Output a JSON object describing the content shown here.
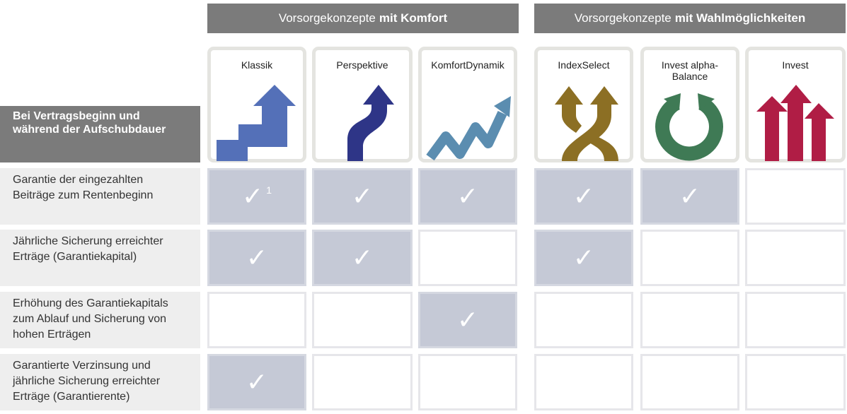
{
  "groups": [
    {
      "prefix": "Vorsorgekonzepte",
      "bold": "mit Komfort"
    },
    {
      "prefix": "Vorsorgekonzepte",
      "bold": "mit Wahlmöglichkeiten"
    }
  ],
  "products": [
    {
      "name": "Klassik",
      "icon": "stairs-arrow-icon",
      "color": "#5470b8"
    },
    {
      "name": "Perspektive",
      "icon": "curved-arrow-icon",
      "color": "#2e3587"
    },
    {
      "name": "KomfortDynamik",
      "icon": "zigzag-arrow-icon",
      "color": "#5b8db0"
    },
    {
      "name": "IndexSelect",
      "icon": "crossing-arrows-icon",
      "color": "#8c6f24"
    },
    {
      "name": "Invest alpha-Balance",
      "icon": "circular-arrow-icon",
      "color": "#3f7a55"
    },
    {
      "name": "Invest",
      "icon": "three-arrows-icon",
      "color": "#b01d45"
    }
  ],
  "header_label": "Bei Vertragsbeginn und während der Aufschubdauer",
  "rows": [
    {
      "label": "Garantie der eingezahlten Beiträge zum Rentenbeginn",
      "checks": [
        true,
        true,
        true,
        true,
        true,
        false
      ],
      "footnote": "1"
    },
    {
      "label": "Jährliche Sicherung erreichter Erträge (Garantiekapital)",
      "checks": [
        true,
        true,
        false,
        true,
        false,
        false
      ]
    },
    {
      "label": "Erhöhung des Garantiekapitals zum Ablauf und Sicherung von hohen Erträgen",
      "checks": [
        false,
        false,
        true,
        false,
        false,
        false
      ]
    },
    {
      "label": "Garantierte Verzinsung und jährliche Sicherung erreichter Erträge (Garantierente)",
      "checks": [
        true,
        false,
        false,
        false,
        false,
        false
      ]
    }
  ],
  "check_glyph": "✓"
}
